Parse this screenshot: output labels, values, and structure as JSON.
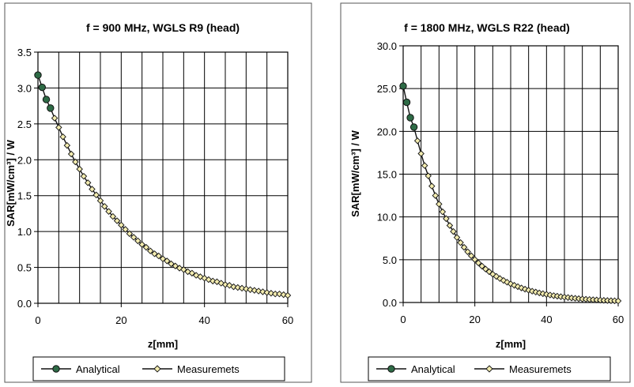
{
  "chart_data": [
    {
      "type": "line",
      "title": "f = 900 MHz, WGLS R9 (head)",
      "xlabel": "z[mm]",
      "ylabel": "SAR[mW/cm³] / W",
      "xlim": [
        0,
        60
      ],
      "ylim": [
        0,
        3.5
      ],
      "xticks": [
        "0",
        "20",
        "40",
        "60"
      ],
      "yticks": [
        "0.0",
        "0.5",
        "1.0",
        "1.5",
        "2.0",
        "2.5",
        "3.0",
        "3.5"
      ],
      "grid": true,
      "legend_position": "bottom",
      "series": [
        {
          "name": "Analytical",
          "color": "#2e6b46",
          "marker": "circle",
          "x": [
            0,
            1,
            2,
            3
          ],
          "y": [
            3.18,
            3.01,
            2.84,
            2.72
          ]
        },
        {
          "name": "Measuremets",
          "color": "#f3ecb0",
          "marker": "diamond",
          "x": [
            4,
            5,
            6,
            7,
            8,
            9,
            10,
            11,
            12,
            13,
            14,
            15,
            16,
            17,
            18,
            19,
            20,
            21,
            22,
            23,
            24,
            25,
            26,
            27,
            28,
            29,
            30,
            31,
            32,
            33,
            34,
            35,
            36,
            37,
            38,
            39,
            40,
            41,
            42,
            43,
            44,
            45,
            46,
            47,
            48,
            49,
            50,
            51,
            52,
            53,
            54,
            55,
            56,
            57,
            58,
            59,
            60
          ],
          "y": [
            2.58,
            2.45,
            2.32,
            2.2,
            2.08,
            1.97,
            1.87,
            1.77,
            1.68,
            1.59,
            1.51,
            1.43,
            1.35,
            1.28,
            1.21,
            1.15,
            1.09,
            1.03,
            0.97,
            0.92,
            0.87,
            0.82,
            0.78,
            0.73,
            0.69,
            0.66,
            0.62,
            0.59,
            0.55,
            0.52,
            0.49,
            0.47,
            0.44,
            0.42,
            0.39,
            0.37,
            0.35,
            0.33,
            0.31,
            0.3,
            0.28,
            0.26,
            0.25,
            0.23,
            0.22,
            0.21,
            0.2,
            0.19,
            0.18,
            0.17,
            0.16,
            0.15,
            0.14,
            0.13,
            0.13,
            0.12,
            0.11
          ]
        }
      ]
    },
    {
      "type": "line",
      "title": "f = 1800 MHz, WGLS R22 (head)",
      "xlabel": "z[mm]",
      "ylabel": "SAR[mW/cm³] / W",
      "xlim": [
        0,
        60
      ],
      "ylim": [
        0,
        30
      ],
      "xticks": [
        "0",
        "20",
        "40",
        "60"
      ],
      "yticks": [
        "0.0",
        "5.0",
        "10.0",
        "15.0",
        "20.0",
        "25.0",
        "30.0"
      ],
      "grid": true,
      "legend_position": "bottom",
      "series": [
        {
          "name": "Analytical",
          "color": "#2e6b46",
          "marker": "circle",
          "x": [
            0,
            1,
            2,
            3
          ],
          "y": [
            25.3,
            23.4,
            21.6,
            20.5
          ]
        },
        {
          "name": "Measuremets",
          "color": "#f3ecb0",
          "marker": "diamond",
          "x": [
            4,
            5,
            6,
            7,
            8,
            9,
            10,
            11,
            12,
            13,
            14,
            15,
            16,
            17,
            18,
            19,
            20,
            21,
            22,
            23,
            24,
            25,
            26,
            27,
            28,
            29,
            30,
            31,
            32,
            33,
            34,
            35,
            36,
            37,
            38,
            39,
            40,
            41,
            42,
            43,
            44,
            45,
            46,
            47,
            48,
            49,
            50,
            51,
            52,
            53,
            54,
            55,
            56,
            57,
            58,
            59,
            60
          ],
          "y": [
            18.9,
            17.4,
            16.0,
            14.8,
            13.6,
            12.5,
            11.5,
            10.6,
            9.8,
            9.0,
            8.3,
            7.6,
            7.0,
            6.45,
            5.93,
            5.46,
            5.02,
            4.62,
            4.25,
            3.91,
            3.6,
            3.31,
            3.05,
            2.8,
            2.58,
            2.37,
            2.18,
            2.01,
            1.85,
            1.7,
            1.56,
            1.44,
            1.32,
            1.22,
            1.12,
            1.03,
            0.95,
            0.87,
            0.8,
            0.74,
            0.68,
            0.63,
            0.58,
            0.53,
            0.49,
            0.45,
            0.41,
            0.38,
            0.35,
            0.32,
            0.3,
            0.27,
            0.25,
            0.23,
            0.21,
            0.2,
            0.18
          ]
        }
      ]
    }
  ]
}
